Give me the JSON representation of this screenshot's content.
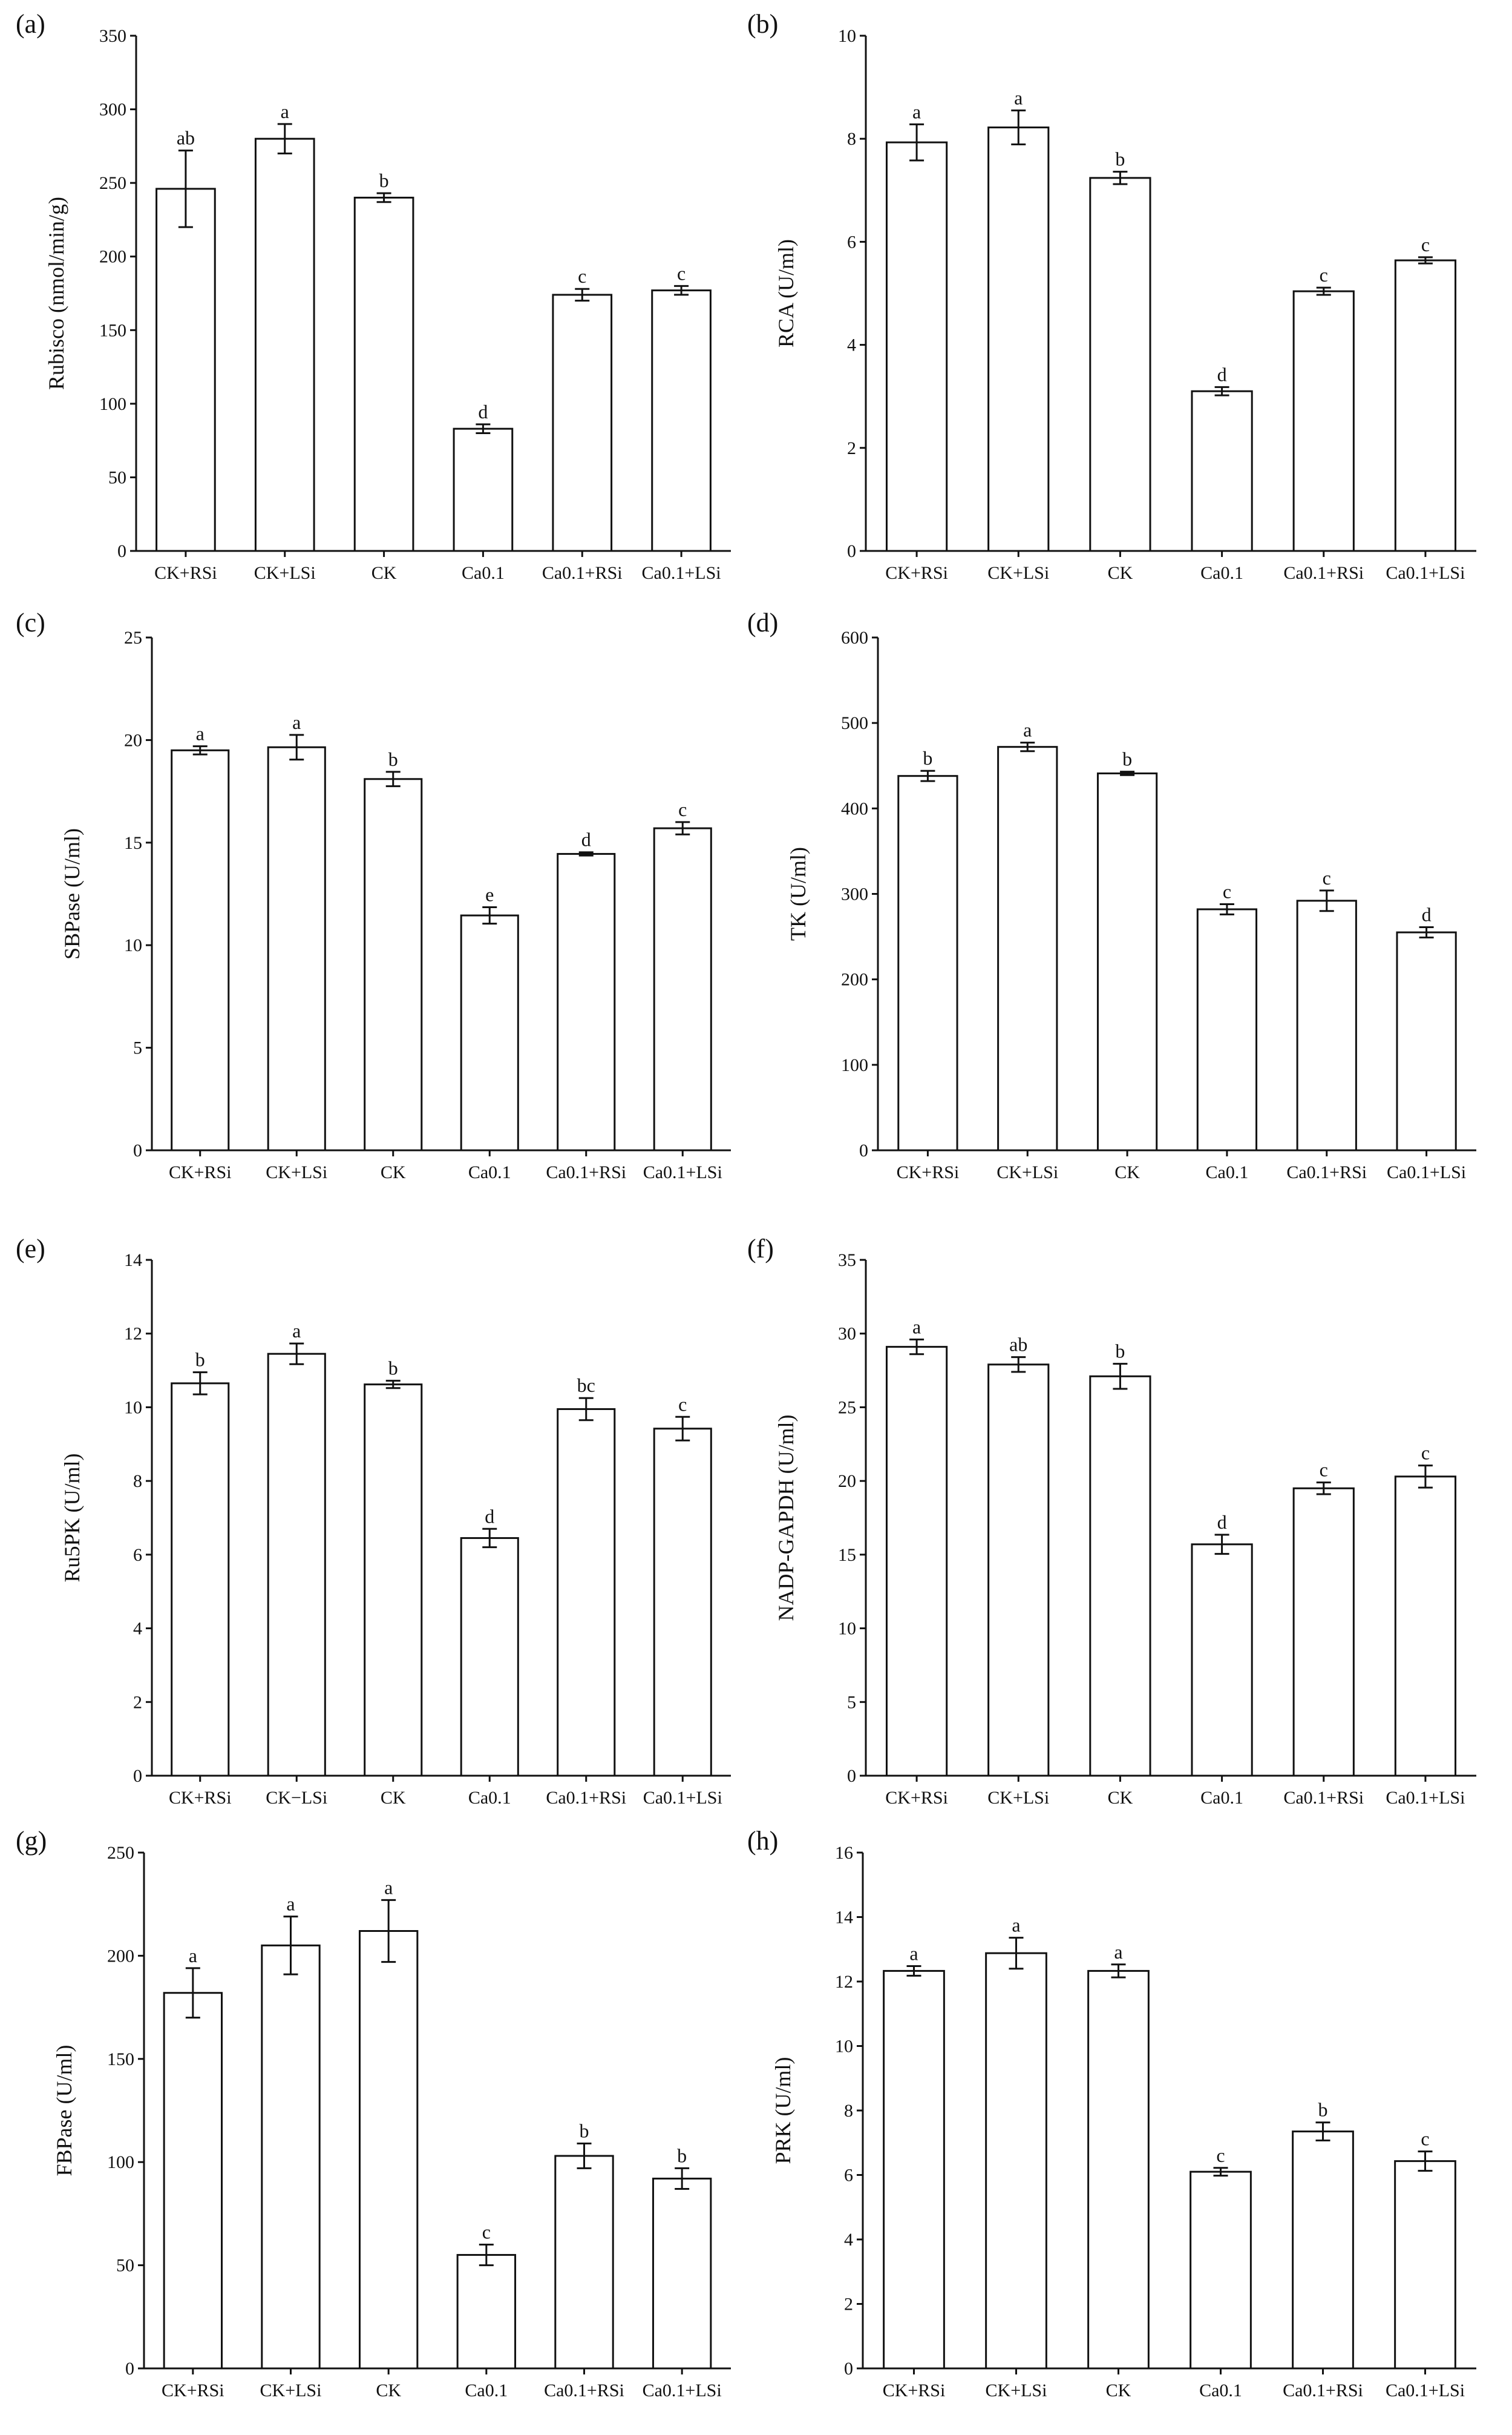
{
  "chart_data": [
    {
      "panel": "(a)",
      "type": "bar",
      "ylabel": "Rubisco (nmol/min/g)",
      "ylim": [
        0,
        350
      ],
      "yticks": [
        0,
        50,
        100,
        150,
        200,
        250,
        300,
        350
      ],
      "categories": [
        "CK+RSi",
        "CK+LSi",
        "CK",
        "Ca0.1",
        "Ca0.1+RSi",
        "Ca0.1+LSi"
      ],
      "values": [
        246,
        280,
        240,
        83,
        174,
        177
      ],
      "errors": [
        26,
        10,
        3,
        3,
        4,
        3
      ],
      "significance": [
        "ab",
        "a",
        "b",
        "d",
        "c",
        "c"
      ]
    },
    {
      "panel": "(b)",
      "type": "bar",
      "ylabel": "RCA (U/ml)",
      "ylim": [
        0,
        10
      ],
      "yticks": [
        0,
        2,
        4,
        6,
        8,
        10
      ],
      "categories": [
        "CK+RSi",
        "CK+LSi",
        "CK",
        "Ca0.1",
        "Ca0.1+RSi",
        "Ca0.1+LSi"
      ],
      "values": [
        7.93,
        8.22,
        7.24,
        3.1,
        5.04,
        5.64
      ],
      "errors": [
        0.35,
        0.33,
        0.12,
        0.08,
        0.07,
        0.06
      ],
      "significance": [
        "a",
        "a",
        "b",
        "d",
        "c",
        "c"
      ]
    },
    {
      "panel": "(c)",
      "type": "bar",
      "ylabel": "SBPase (U/ml)",
      "ylim": [
        0,
        25
      ],
      "yticks": [
        0,
        5,
        10,
        15,
        20,
        25
      ],
      "categories": [
        "CK+RSi",
        "CK+LSi",
        "CK",
        "Ca0.1",
        "Ca0.1+RSi",
        "Ca0.1+LSi"
      ],
      "values": [
        19.5,
        19.65,
        18.1,
        11.45,
        14.45,
        15.7
      ],
      "errors": [
        0.2,
        0.6,
        0.35,
        0.4,
        0.08,
        0.3
      ],
      "significance": [
        "a",
        "a",
        "b",
        "e",
        "d",
        "c"
      ]
    },
    {
      "panel": "(d)",
      "type": "bar",
      "ylabel": "TK (U/ml)",
      "ylim": [
        0,
        600
      ],
      "yticks": [
        0,
        100,
        200,
        300,
        400,
        500,
        600
      ],
      "categories": [
        "CK+RSi",
        "CK+LSi",
        "CK",
        "Ca0.1",
        "Ca0.1+RSi",
        "Ca0.1+LSi"
      ],
      "values": [
        438,
        472,
        441,
        282,
        292,
        255
      ],
      "errors": [
        6,
        5,
        2,
        6,
        12,
        6
      ],
      "significance": [
        "b",
        "a",
        "b",
        "c",
        "c",
        "d"
      ]
    },
    {
      "panel": "(e)",
      "type": "bar",
      "ylabel": "Ru5PK (U/ml)",
      "ylim": [
        0,
        14
      ],
      "yticks": [
        0,
        2,
        4,
        6,
        8,
        10,
        12,
        14
      ],
      "categories": [
        "CK+RSi",
        "CK−LSi",
        "CK",
        "Ca0.1",
        "Ca0.1+RSi",
        "Ca0.1+LSi"
      ],
      "values": [
        10.65,
        11.45,
        10.62,
        6.45,
        9.95,
        9.42
      ],
      "errors": [
        0.3,
        0.28,
        0.1,
        0.25,
        0.3,
        0.32
      ],
      "significance": [
        "b",
        "a",
        "b",
        "d",
        "bc",
        "c"
      ]
    },
    {
      "panel": "(f)",
      "type": "bar",
      "ylabel": "NADP-GAPDH (U/ml)",
      "ylim": [
        0,
        35
      ],
      "yticks": [
        0,
        5,
        10,
        15,
        20,
        25,
        30,
        35
      ],
      "categories": [
        "CK+RSi",
        "CK+LSi",
        "CK",
        "Ca0.1",
        "Ca0.1+RSi",
        "Ca0.1+LSi"
      ],
      "values": [
        29.1,
        27.9,
        27.1,
        15.7,
        19.5,
        20.3
      ],
      "errors": [
        0.5,
        0.5,
        0.85,
        0.65,
        0.4,
        0.75
      ],
      "significance": [
        "a",
        "ab",
        "b",
        "d",
        "c",
        "c"
      ]
    },
    {
      "panel": "(g)",
      "type": "bar",
      "ylabel": "FBPase (U/ml)",
      "ylim": [
        0,
        250
      ],
      "yticks": [
        0,
        50,
        100,
        150,
        200,
        250
      ],
      "categories": [
        "CK+RSi",
        "CK+LSi",
        "CK",
        "Ca0.1",
        "Ca0.1+RSi",
        "Ca0.1+LSi"
      ],
      "values": [
        182,
        205,
        212,
        55,
        103,
        92
      ],
      "errors": [
        12,
        14,
        15,
        5,
        6,
        5
      ],
      "significance": [
        "a",
        "a",
        "a",
        "c",
        "b",
        "b"
      ]
    },
    {
      "panel": "(h)",
      "type": "bar",
      "ylabel": "PRK (U/ml)",
      "ylim": [
        0,
        16
      ],
      "yticks": [
        0,
        2,
        4,
        6,
        8,
        10,
        12,
        14,
        16
      ],
      "categories": [
        "CK+RSi",
        "CK+LSi",
        "CK",
        "Ca0.1",
        "Ca0.1+RSi",
        "Ca0.1+LSi"
      ],
      "values": [
        12.33,
        12.88,
        12.33,
        6.1,
        7.35,
        6.43
      ],
      "errors": [
        0.15,
        0.48,
        0.2,
        0.12,
        0.28,
        0.3
      ],
      "significance": [
        "a",
        "a",
        "a",
        "c",
        "b",
        "c"
      ]
    }
  ]
}
